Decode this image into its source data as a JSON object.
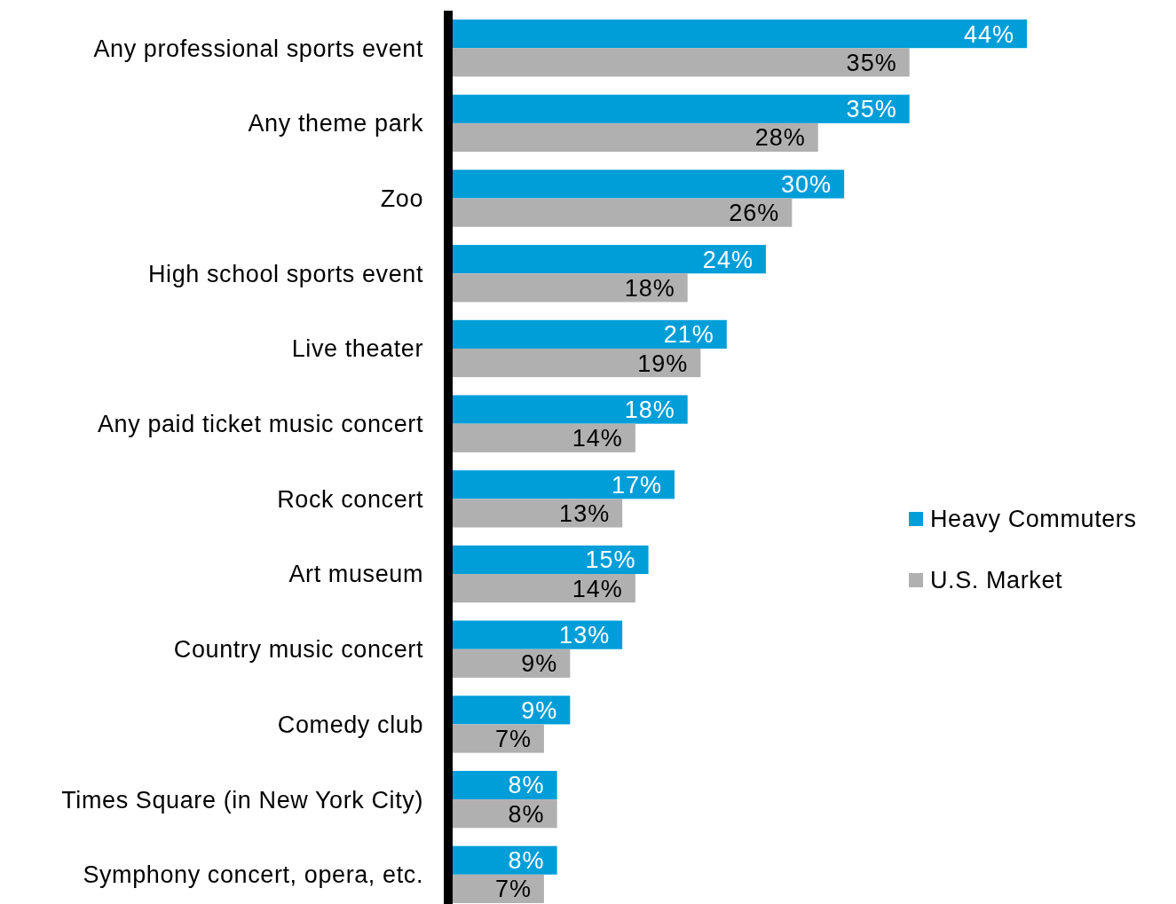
{
  "chart_data": {
    "type": "bar",
    "orientation": "horizontal",
    "categories": [
      "Any professional sports event",
      "Any theme park",
      "Zoo",
      "High school sports event",
      "Live theater",
      "Any paid ticket music concert",
      "Rock concert",
      "Art museum",
      "Country music concert",
      "Comedy club",
      "Times Square (in New York City)",
      "Symphony concert, opera, etc."
    ],
    "series": [
      {
        "name": "Heavy Commuters",
        "color": "#009ed9",
        "values": [
          44,
          35,
          30,
          24,
          21,
          18,
          17,
          15,
          13,
          9,
          8,
          8
        ],
        "value_labels": [
          "44%",
          "35%",
          "30%",
          "24%",
          "21%",
          "18%",
          "17%",
          "15%",
          "13%",
          "9%",
          "8%",
          "8%"
        ]
      },
      {
        "name": "U.S. Market",
        "color": "#b0b0b0",
        "values": [
          35,
          28,
          26,
          18,
          19,
          14,
          13,
          14,
          9,
          7,
          8,
          7
        ],
        "value_labels": [
          "35%",
          "28%",
          "26%",
          "18%",
          "19%",
          "14%",
          "13%",
          "14%",
          "9%",
          "7%",
          "8%",
          "7%"
        ]
      }
    ],
    "legend": "right"
  }
}
